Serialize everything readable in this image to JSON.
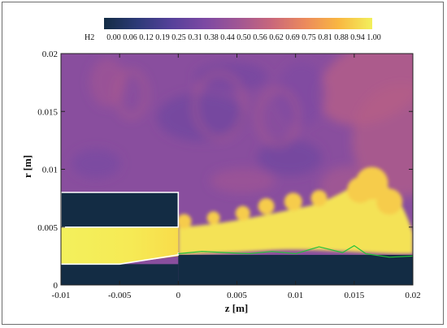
{
  "chart_data": {
    "type": "heatmap",
    "title": "",
    "variable": "H2",
    "xlabel": "z [m]",
    "ylabel": "r [m]",
    "xlim": [
      -0.01,
      0.02
    ],
    "ylim": [
      0,
      0.02
    ],
    "x_ticks": [
      "-0.01",
      "-0.005",
      "0",
      "0.005",
      "0.01",
      "0.015",
      "0.02"
    ],
    "y_ticks": [
      "0",
      "0.005",
      "0.01",
      "0.015",
      "0.02"
    ],
    "colorbar": {
      "label": "H2",
      "range": [
        0,
        1
      ],
      "ticks": [
        "0.00",
        "0.06",
        "0.12",
        "0.19",
        "0.25",
        "0.31",
        "0.38",
        "0.44",
        "0.50",
        "0.56",
        "0.62",
        "0.69",
        "0.75",
        "0.81",
        "0.88",
        "0.94",
        "1.00"
      ],
      "colors": [
        "#132c44",
        "#2d3a78",
        "#55419a",
        "#7c49a3",
        "#a05694",
        "#c9677b",
        "#ec8a5c",
        "#f9b741",
        "#f2f05c"
      ]
    },
    "fields": {
      "background_value": 0.42,
      "jet_value": 1.0,
      "solid_region_value": 0.0
    },
    "geometry": {
      "injector_outer_wall": [
        [
          -0.01,
          0.008
        ],
        [
          0,
          0.008
        ],
        [
          0,
          0.005
        ],
        [
          -0.01,
          0.005
        ]
      ],
      "h2_jet_core": [
        [
          -0.01,
          0.005
        ],
        [
          0,
          0.005
        ],
        [
          0,
          0.0025
        ],
        [
          -0.005,
          0.0018
        ],
        [
          -0.01,
          0.0018
        ]
      ],
      "injector_inner_wall": [
        [
          -0.01,
          0.0018
        ],
        [
          -0.005,
          0.0018
        ],
        [
          0,
          0.0026
        ],
        [
          0,
          0.0028
        ]
      ]
    },
    "flame_contour": {
      "color": "#22c33a",
      "points": [
        [
          0,
          0.0027
        ],
        [
          0.002,
          0.0029
        ],
        [
          0.004,
          0.0028
        ],
        [
          0.006,
          0.0027
        ],
        [
          0.008,
          0.0029
        ],
        [
          0.01,
          0.0027
        ],
        [
          0.012,
          0.0033
        ],
        [
          0.014,
          0.0028
        ],
        [
          0.015,
          0.0034
        ],
        [
          0.016,
          0.0027
        ],
        [
          0.018,
          0.0024
        ],
        [
          0.02,
          0.0025
        ]
      ]
    }
  }
}
